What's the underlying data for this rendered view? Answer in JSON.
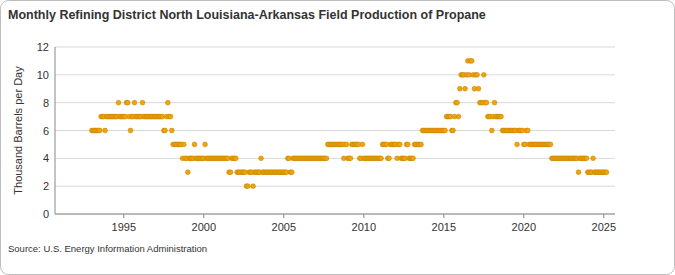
{
  "chart_data": {
    "type": "scatter",
    "title": "Monthly Refining District North Louisiana-Arkansas Field Production of Propane",
    "y_label": "Thousand Barrels per Day",
    "source": "Source: U.S. Energy Information Administration",
    "color": "#f0a30a",
    "marker": "circle",
    "grid": true,
    "xlim": [
      1990.7,
      2025.7
    ],
    "xticks": [
      1995,
      2000,
      2005,
      2010,
      2015,
      2020,
      2025
    ],
    "ylim": [
      0,
      12
    ],
    "yticks": [
      0,
      2,
      4,
      6,
      8,
      10,
      12
    ],
    "x": [
      1993,
      1993.08,
      1993.17,
      1993.25,
      1993.33,
      1993.42,
      1993.5,
      1993.58,
      1993.67,
      1993.75,
      1993.83,
      1993.92,
      1994,
      1994.08,
      1994.17,
      1994.25,
      1994.33,
      1994.42,
      1994.5,
      1994.58,
      1994.67,
      1994.75,
      1994.83,
      1994.92,
      1995,
      1995.08,
      1995.17,
      1995.25,
      1995.33,
      1995.42,
      1995.5,
      1995.58,
      1995.67,
      1995.75,
      1995.83,
      1995.92,
      1996,
      1996.08,
      1996.17,
      1996.25,
      1996.33,
      1996.42,
      1996.5,
      1996.58,
      1996.67,
      1996.75,
      1996.83,
      1996.92,
      1997,
      1997.08,
      1997.17,
      1997.25,
      1997.33,
      1997.42,
      1997.5,
      1997.58,
      1997.67,
      1997.75,
      1997.83,
      1997.92,
      1998,
      1998.08,
      1998.17,
      1998.25,
      1998.33,
      1998.42,
      1998.5,
      1998.58,
      1998.67,
      1998.75,
      1998.83,
      1998.92,
      1999,
      1999.08,
      1999.17,
      1999.25,
      1999.33,
      1999.42,
      1999.5,
      1999.58,
      1999.67,
      1999.75,
      1999.83,
      1999.92,
      2000,
      2000.08,
      2000.17,
      2000.25,
      2000.33,
      2000.42,
      2000.5,
      2000.58,
      2000.67,
      2000.75,
      2000.83,
      2000.92,
      2001,
      2001.08,
      2001.17,
      2001.25,
      2001.33,
      2001.42,
      2001.5,
      2001.58,
      2001.67,
      2001.75,
      2001.83,
      2001.92,
      2002,
      2002.08,
      2002.17,
      2002.25,
      2002.33,
      2002.42,
      2002.5,
      2002.58,
      2002.67,
      2002.75,
      2002.83,
      2002.92,
      2003,
      2003.08,
      2003.17,
      2003.25,
      2003.33,
      2003.42,
      2003.5,
      2003.58,
      2003.67,
      2003.75,
      2003.83,
      2003.92,
      2004,
      2004.08,
      2004.17,
      2004.25,
      2004.33,
      2004.42,
      2004.5,
      2004.58,
      2004.67,
      2004.75,
      2004.83,
      2004.92,
      2005,
      2005.08,
      2005.17,
      2005.25,
      2005.33,
      2005.42,
      2005.5,
      2005.58,
      2005.67,
      2005.75,
      2005.83,
      2005.92,
      2006,
      2006.08,
      2006.17,
      2006.25,
      2006.33,
      2006.42,
      2006.5,
      2006.58,
      2006.67,
      2006.75,
      2006.83,
      2006.92,
      2007,
      2007.08,
      2007.17,
      2007.25,
      2007.33,
      2007.42,
      2007.5,
      2007.58,
      2007.67,
      2007.75,
      2007.83,
      2007.92,
      2008,
      2008.08,
      2008.17,
      2008.25,
      2008.33,
      2008.42,
      2008.5,
      2008.58,
      2008.67,
      2008.75,
      2008.83,
      2008.92,
      2009,
      2009.08,
      2009.17,
      2009.25,
      2009.33,
      2009.42,
      2009.5,
      2009.58,
      2009.67,
      2009.75,
      2009.83,
      2009.92,
      2010,
      2010.08,
      2010.17,
      2010.25,
      2010.33,
      2010.42,
      2010.5,
      2010.58,
      2010.67,
      2010.75,
      2010.83,
      2010.92,
      2011,
      2011.08,
      2011.17,
      2011.25,
      2011.33,
      2011.42,
      2011.5,
      2011.58,
      2011.67,
      2011.75,
      2011.83,
      2011.92,
      2012,
      2012.08,
      2012.17,
      2012.25,
      2012.33,
      2012.42,
      2012.5,
      2012.58,
      2012.67,
      2012.75,
      2012.83,
      2012.92,
      2013,
      2013.08,
      2013.17,
      2013.25,
      2013.33,
      2013.42,
      2013.5,
      2013.58,
      2013.67,
      2013.75,
      2013.83,
      2013.92,
      2014,
      2014.08,
      2014.17,
      2014.25,
      2014.33,
      2014.42,
      2014.5,
      2014.58,
      2014.67,
      2014.75,
      2014.83,
      2014.92,
      2015,
      2015.08,
      2015.17,
      2015.25,
      2015.33,
      2015.42,
      2015.5,
      2015.58,
      2015.67,
      2015.75,
      2015.83,
      2015.92,
      2016,
      2016.08,
      2016.17,
      2016.25,
      2016.33,
      2016.42,
      2016.5,
      2016.58,
      2016.67,
      2016.75,
      2016.83,
      2016.92,
      2017,
      2017.08,
      2017.17,
      2017.25,
      2017.33,
      2017.42,
      2017.5,
      2017.58,
      2017.67,
      2017.75,
      2017.83,
      2017.92,
      2018,
      2018.08,
      2018.17,
      2018.25,
      2018.33,
      2018.42,
      2018.5,
      2018.58,
      2018.67,
      2018.75,
      2018.83,
      2018.92,
      2019,
      2019.08,
      2019.17,
      2019.25,
      2019.33,
      2019.42,
      2019.5,
      2019.58,
      2019.67,
      2019.75,
      2019.83,
      2019.92,
      2020,
      2020.08,
      2020.17,
      2020.25,
      2020.33,
      2020.42,
      2020.5,
      2020.58,
      2020.67,
      2020.75,
      2020.83,
      2020.92,
      2021,
      2021.08,
      2021.17,
      2021.25,
      2021.33,
      2021.42,
      2021.5,
      2021.58,
      2021.67,
      2021.75,
      2021.83,
      2021.92,
      2022,
      2022.08,
      2022.17,
      2022.25,
      2022.33,
      2022.42,
      2022.5,
      2022.58,
      2022.67,
      2022.75,
      2022.83,
      2022.92,
      2023,
      2023.08,
      2023.17,
      2023.25,
      2023.33,
      2023.42,
      2023.5,
      2023.58,
      2023.67,
      2023.75,
      2023.83,
      2023.92,
      2024,
      2024.08,
      2024.17,
      2024.25,
      2024.33,
      2024.42,
      2024.5,
      2024.58,
      2024.67,
      2024.75,
      2024.83,
      2024.92,
      2025,
      2025.08,
      2025.17
    ],
    "values": [
      6,
      6,
      6,
      6,
      6,
      6,
      6,
      7,
      7,
      7,
      6,
      7,
      7,
      7,
      7,
      7,
      7,
      7,
      7,
      7,
      8,
      7,
      7,
      7,
      7,
      7,
      8,
      8,
      7,
      6,
      7,
      7,
      8,
      7,
      7,
      7,
      7,
      7,
      8,
      7,
      7,
      7,
      7,
      7,
      7,
      7,
      7,
      7,
      7,
      7,
      7,
      7,
      7,
      7,
      6,
      6,
      7,
      8,
      7,
      7,
      6,
      5,
      5,
      5,
      5,
      5,
      5,
      5,
      4,
      5,
      4,
      4,
      3,
      4,
      4,
      4,
      4,
      5,
      4,
      4,
      4,
      4,
      4,
      4,
      4,
      5,
      4,
      4,
      4,
      4,
      4,
      4,
      4,
      4,
      4,
      4,
      4,
      4,
      4,
      4,
      4,
      4,
      4,
      3,
      3,
      4,
      4,
      4,
      4,
      3,
      3,
      3,
      3,
      3,
      3,
      3,
      2,
      2,
      3,
      3,
      3,
      2,
      3,
      3,
      3,
      3,
      3,
      4,
      3,
      3,
      3,
      3,
      3,
      3,
      3,
      3,
      3,
      3,
      3,
      3,
      3,
      3,
      3,
      3,
      3,
      3,
      3,
      4,
      4,
      3,
      3,
      4,
      4,
      4,
      4,
      4,
      4,
      4,
      4,
      4,
      4,
      4,
      4,
      4,
      4,
      4,
      4,
      4,
      4,
      4,
      4,
      4,
      4,
      4,
      4,
      4,
      4,
      5,
      5,
      5,
      5,
      5,
      5,
      5,
      5,
      5,
      5,
      5,
      5,
      4,
      5,
      5,
      4,
      4,
      4,
      5,
      5,
      5,
      5,
      5,
      5,
      4,
      4,
      5,
      4,
      4,
      4,
      4,
      4,
      4,
      4,
      4,
      4,
      4,
      4,
      4,
      4,
      4,
      5,
      5,
      5,
      5,
      4,
      4,
      5,
      5,
      5,
      5,
      5,
      4,
      5,
      5,
      4,
      4,
      4,
      4,
      5,
      5,
      4,
      4,
      4,
      4,
      5,
      5,
      5,
      5,
      5,
      5,
      6,
      6,
      6,
      6,
      6,
      6,
      6,
      6,
      6,
      6,
      6,
      6,
      6,
      6,
      6,
      6,
      6,
      6,
      7,
      7,
      7,
      7,
      6,
      6,
      7,
      8,
      8,
      7,
      9,
      10,
      10,
      10,
      9,
      10,
      11,
      10,
      11,
      11,
      10,
      9,
      10,
      10,
      9,
      8,
      8,
      8,
      10,
      8,
      8,
      7,
      7,
      7,
      6,
      7,
      8,
      7,
      7,
      7,
      7,
      7,
      6,
      6,
      6,
      6,
      6,
      6,
      6,
      6,
      6,
      6,
      6,
      5,
      6,
      6,
      6,
      6,
      5,
      5,
      6,
      6,
      5,
      5,
      5,
      5,
      5,
      5,
      5,
      5,
      5,
      5,
      5,
      5,
      5,
      5,
      5,
      5,
      5,
      4,
      4,
      4,
      4,
      4,
      4,
      4,
      4,
      4,
      4,
      4,
      4,
      4,
      4,
      4,
      4,
      4,
      4,
      4,
      4,
      3,
      4,
      4,
      4,
      4,
      4,
      4,
      3,
      3,
      3,
      3,
      4,
      3,
      3,
      3,
      3,
      3,
      3,
      3,
      3,
      3,
      3
    ]
  }
}
